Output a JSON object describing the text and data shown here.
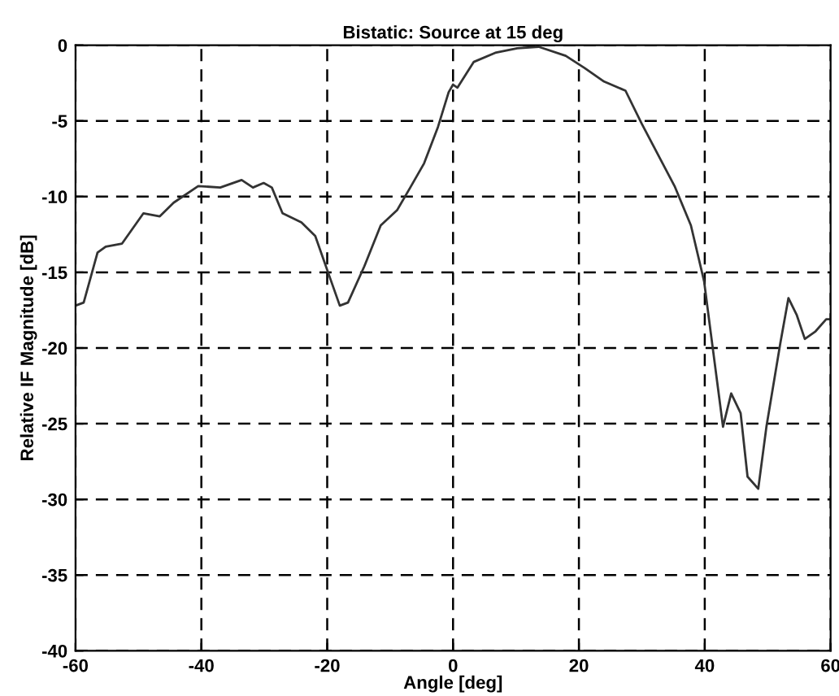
{
  "chart_data": {
    "type": "line",
    "title": "Bistatic: Source at 15 deg",
    "xlabel": "Angle [deg]",
    "ylabel": "Relative IF Magnitude [dB]",
    "x": [
      -60,
      -58.7,
      -56.5,
      -55.2,
      -52.6,
      -49.2,
      -46.6,
      -44.4,
      -40.5,
      -37,
      -33.6,
      -31.8,
      -30.1,
      -28.8,
      -27.1,
      -24.1,
      -21.9,
      -19.7,
      -18,
      -16.7,
      -14.1,
      -11.5,
      -8.9,
      -6.8,
      -4.6,
      -2.4,
      -0.7,
      0,
      0.7,
      3.3,
      6.7,
      10.2,
      13.6,
      17.9,
      20.9,
      24,
      27.4,
      30,
      35.2,
      37.8,
      39.9,
      40.8,
      42.9,
      44.2,
      45.7,
      46.8,
      48.5,
      49.8,
      52,
      53.3,
      54.6,
      55.9,
      57.6,
      59.3,
      60
    ],
    "series": [
      {
        "color": "#333333",
        "values": [
          -17.2,
          -17,
          -13.7,
          -13.3,
          -13.1,
          -11.1,
          -11.3,
          -10.4,
          -9.3,
          -9.4,
          -8.9,
          -9.4,
          -9.1,
          -9.4,
          -11.1,
          -11.7,
          -12.6,
          -15.2,
          -17.2,
          -17,
          -14.6,
          -11.9,
          -10.9,
          -9.4,
          -7.8,
          -5.4,
          -3.1,
          -2.6,
          -2.8,
          -1.1,
          -0.5,
          -0.2,
          -0.1,
          -0.7,
          -1.5,
          -2.4,
          -3,
          -5.2,
          -9.3,
          -11.9,
          -15.6,
          -18.5,
          -25.2,
          -23,
          -24.3,
          -28.5,
          -29.3,
          -25.2,
          -19.7,
          -16.7,
          -17.8,
          -19.4,
          -18.9,
          -18.1,
          -18.1
        ]
      }
    ],
    "xlim": [
      -60,
      60
    ],
    "ylim": [
      -40,
      0
    ],
    "xticks": [
      -60,
      -40,
      -20,
      0,
      20,
      40,
      60
    ],
    "yticks": [
      -40,
      -35,
      -30,
      -25,
      -20,
      -15,
      -10,
      -5,
      0
    ],
    "grid": true,
    "line_style": "solid",
    "marker": "none",
    "legend": false
  }
}
